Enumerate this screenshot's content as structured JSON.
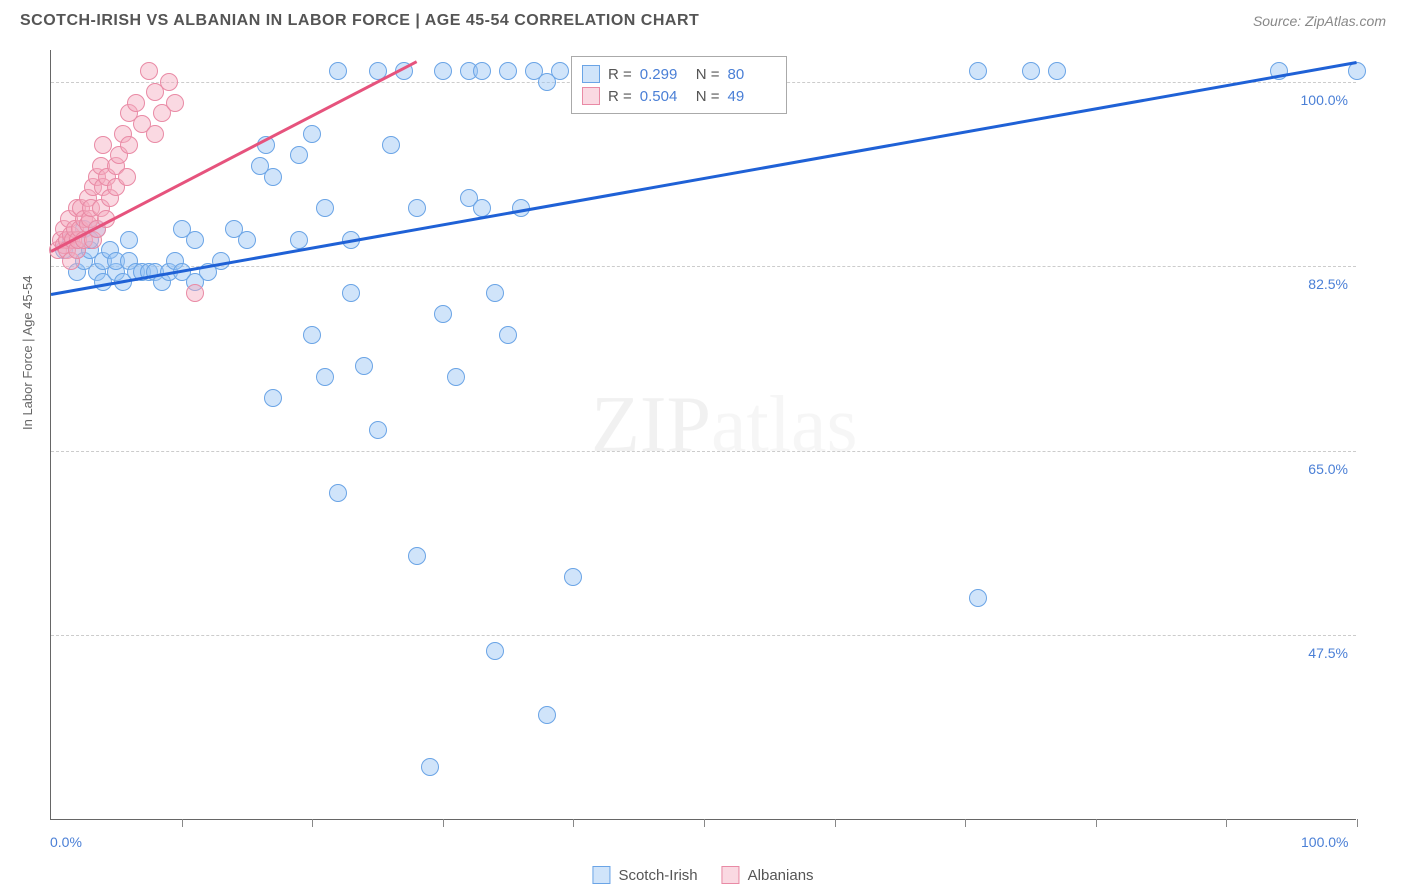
{
  "header": {
    "title": "SCOTCH-IRISH VS ALBANIAN IN LABOR FORCE | AGE 45-54 CORRELATION CHART",
    "source": "Source: ZipAtlas.com"
  },
  "chart": {
    "type": "scatter",
    "ylabel": "In Labor Force | Age 45-54",
    "xlim": [
      0,
      100
    ],
    "ylim": [
      30,
      103
    ],
    "xtick_start": "0.0%",
    "xtick_end": "100.0%",
    "xtick_positions_pct": [
      10,
      20,
      30,
      40,
      50,
      60,
      70,
      80,
      90,
      100
    ],
    "yticks": [
      {
        "v": 47.5,
        "label": "47.5%"
      },
      {
        "v": 65.0,
        "label": "65.0%"
      },
      {
        "v": 82.5,
        "label": "82.5%"
      },
      {
        "v": 100.0,
        "label": "100.0%"
      }
    ],
    "grid_color": "#cccccc",
    "background_color": "#ffffff",
    "point_radius": 9,
    "point_border_width": 1.2,
    "watermark": "ZIPatlas",
    "series": [
      {
        "name": "Scotch-Irish",
        "fill": "rgba(151,195,244,0.45)",
        "stroke": "#6aa4e6",
        "trend_color": "#1f61d6",
        "trend": {
          "x1": 0,
          "y1": 80,
          "x2": 100,
          "y2": 102
        },
        "R": "0.299",
        "N": "80",
        "points": [
          [
            1,
            84
          ],
          [
            1.5,
            85
          ],
          [
            2,
            82
          ],
          [
            2,
            84
          ],
          [
            2.5,
            83
          ],
          [
            2.5,
            86
          ],
          [
            3,
            84
          ],
          [
            3,
            85
          ],
          [
            3.5,
            82
          ],
          [
            3.5,
            86
          ],
          [
            4,
            83
          ],
          [
            4,
            81
          ],
          [
            4.5,
            84
          ],
          [
            5,
            82
          ],
          [
            5,
            83
          ],
          [
            5.5,
            81
          ],
          [
            6,
            83
          ],
          [
            6,
            85
          ],
          [
            6.5,
            82
          ],
          [
            7,
            82
          ],
          [
            7.5,
            82
          ],
          [
            8,
            82
          ],
          [
            8.5,
            81
          ],
          [
            9,
            82
          ],
          [
            9.5,
            83
          ],
          [
            10,
            82
          ],
          [
            10,
            86
          ],
          [
            11,
            81
          ],
          [
            11,
            85
          ],
          [
            12,
            82
          ],
          [
            13,
            83
          ],
          [
            14,
            86
          ],
          [
            15,
            85
          ],
          [
            16,
            92
          ],
          [
            16.5,
            94
          ],
          [
            17,
            70
          ],
          [
            17,
            91
          ],
          [
            19,
            93
          ],
          [
            19,
            85
          ],
          [
            20,
            76
          ],
          [
            20,
            95
          ],
          [
            21,
            72
          ],
          [
            21,
            88
          ],
          [
            22,
            61
          ],
          [
            22,
            101
          ],
          [
            23,
            80
          ],
          [
            23,
            85
          ],
          [
            24,
            73
          ],
          [
            25,
            67
          ],
          [
            25,
            101
          ],
          [
            26,
            94
          ],
          [
            27,
            101
          ],
          [
            28,
            55
          ],
          [
            28,
            88
          ],
          [
            29,
            35
          ],
          [
            30,
            78
          ],
          [
            30,
            101
          ],
          [
            31,
            72
          ],
          [
            32,
            89
          ],
          [
            32,
            101
          ],
          [
            33,
            88
          ],
          [
            33,
            101
          ],
          [
            34,
            80
          ],
          [
            34,
            46
          ],
          [
            35,
            76
          ],
          [
            35,
            101
          ],
          [
            36,
            88
          ],
          [
            37,
            101
          ],
          [
            38,
            40
          ],
          [
            38,
            100
          ],
          [
            39,
            101
          ],
          [
            40,
            53
          ],
          [
            42,
            101
          ],
          [
            44,
            101
          ],
          [
            71,
            101
          ],
          [
            71,
            51
          ],
          [
            75,
            101
          ],
          [
            77,
            101
          ],
          [
            94,
            101
          ],
          [
            100,
            101
          ]
        ]
      },
      {
        "name": "Albanians",
        "fill": "rgba(244,170,190,0.45)",
        "stroke": "#e98aa5",
        "trend_color": "#e6537d",
        "trend": {
          "x1": 0,
          "y1": 84,
          "x2": 28,
          "y2": 102
        },
        "R": "0.504",
        "N": "49",
        "points": [
          [
            0.5,
            84
          ],
          [
            0.8,
            85
          ],
          [
            1,
            84.5
          ],
          [
            1,
            86
          ],
          [
            1.2,
            85
          ],
          [
            1.2,
            84
          ],
          [
            1.4,
            87
          ],
          [
            1.5,
            85.5
          ],
          [
            1.5,
            83
          ],
          [
            1.7,
            85
          ],
          [
            1.8,
            86
          ],
          [
            2,
            84
          ],
          [
            2,
            88
          ],
          [
            2.1,
            85
          ],
          [
            2.2,
            86
          ],
          [
            2.3,
            88
          ],
          [
            2.5,
            85
          ],
          [
            2.5,
            87
          ],
          [
            2.8,
            86.5
          ],
          [
            2.8,
            89
          ],
          [
            3,
            87
          ],
          [
            3.1,
            88
          ],
          [
            3.2,
            90
          ],
          [
            3.2,
            85
          ],
          [
            3.5,
            86
          ],
          [
            3.5,
            91
          ],
          [
            3.8,
            88
          ],
          [
            3.8,
            92
          ],
          [
            4,
            90
          ],
          [
            4,
            94
          ],
          [
            4.2,
            87
          ],
          [
            4.3,
            91
          ],
          [
            4.5,
            89
          ],
          [
            5,
            92
          ],
          [
            5,
            90
          ],
          [
            5.2,
            93
          ],
          [
            5.5,
            95
          ],
          [
            5.8,
            91
          ],
          [
            6,
            94
          ],
          [
            6,
            97
          ],
          [
            6.5,
            98
          ],
          [
            7,
            96
          ],
          [
            7.5,
            101
          ],
          [
            8,
            99
          ],
          [
            8,
            95
          ],
          [
            8.5,
            97
          ],
          [
            9,
            100
          ],
          [
            9.5,
            98
          ],
          [
            11,
            80
          ]
        ]
      }
    ],
    "legend": {
      "series1_label": "Scotch-Irish",
      "series2_label": "Albanians"
    }
  }
}
